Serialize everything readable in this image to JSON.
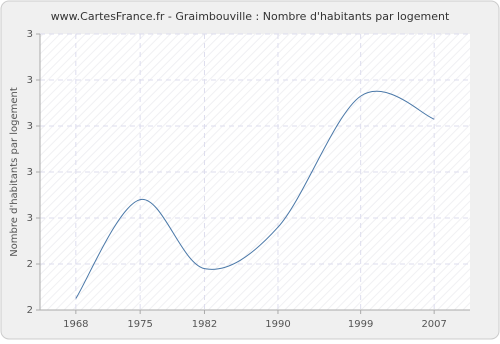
{
  "chart_data": {
    "type": "line",
    "title": "www.CartesFrance.fr - Graimbouville : Nombre d'habitants par logement",
    "y_label": "Nombre d'habitants par logement",
    "x": [
      1968,
      1975,
      1982,
      1990,
      1999,
      2007
    ],
    "xlim": [
      1964.1,
      2010.9
    ],
    "xticks": [
      1968,
      1975,
      1982,
      1990,
      1999,
      2007
    ],
    "series": [
      {
        "name": "Graimbouville",
        "color": "#4a78a8",
        "values": [
          2.15,
          2.58,
          2.28,
          2.46,
          3.03,
          2.93
        ]
      }
    ],
    "ylim": [
      2.1,
      3.3
    ],
    "yticks": [
      {
        "value": 2.1,
        "label": "2"
      },
      {
        "value": 2.3,
        "label": "2"
      },
      {
        "value": 2.5,
        "label": "3"
      },
      {
        "value": 2.7,
        "label": "3"
      },
      {
        "value": 2.9,
        "label": "3"
      },
      {
        "value": 3.1,
        "label": "3"
      },
      {
        "value": 3.3,
        "label": "3"
      }
    ],
    "grid": true
  }
}
